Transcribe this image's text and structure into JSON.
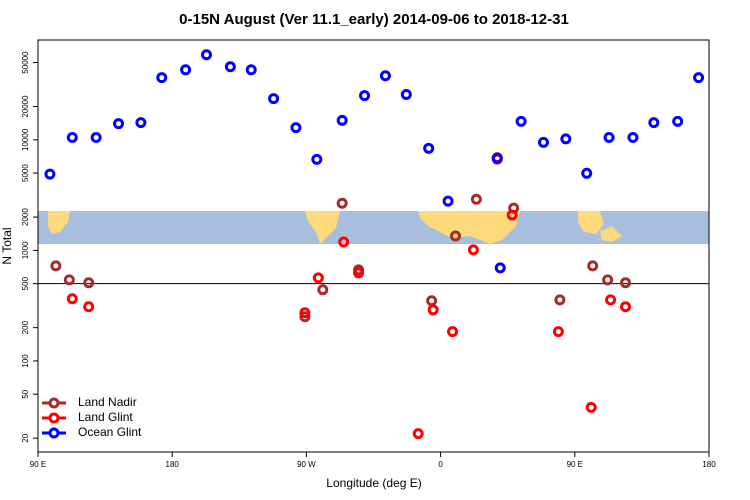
{
  "chart_data": {
    "type": "scatter",
    "title": "0-15N August (Ver 11.1_early)   2014-09-06 to 2018-12-31",
    "x_label": "Longitude (deg E)",
    "y_label": "N Total",
    "xlim": [
      90,
      540
    ],
    "xticks": [
      {
        "value": 90,
        "label": "90 E"
      },
      180,
      {
        "value": 270,
        "label": "90 W"
      },
      {
        "value": 360,
        "label": "0"
      },
      {
        "value": 450,
        "label": "90 E"
      },
      {
        "value": 540,
        "label": "180"
      }
    ],
    "ylim": [
      15,
      80000
    ],
    "ylog": true,
    "yticks": [
      20,
      50,
      100,
      200,
      500,
      1000,
      2000,
      5000,
      10000,
      20000,
      50000
    ],
    "hlines": [
      500
    ],
    "legend": "lower left",
    "series": [
      {
        "name": "Land Nadir",
        "color": "#a52a2a",
        "x": [
          102,
          111,
          124,
          269,
          281,
          294,
          305,
          354,
          370,
          384,
          398,
          409,
          440,
          462,
          472,
          484
        ],
        "values": [
          724,
          541,
          509,
          251,
          440,
          2670,
          666,
          350,
          1350,
          2900,
          6900,
          2410,
          357,
          724,
          541,
          509
        ]
      },
      {
        "name": "Land Glint",
        "color": "#ff0000",
        "x": [
          113,
          124,
          269,
          278,
          295,
          305,
          345,
          355,
          368,
          382,
          398,
          408,
          439,
          461,
          474,
          484
        ],
        "values": [
          365,
          309,
          273,
          564,
          1190,
          626,
          22,
          290,
          184,
          1010,
          6700,
          2090,
          184,
          38,
          357,
          309
        ]
      },
      {
        "name": "Ocean Glint",
        "color": "#0000ff",
        "x": [
          98,
          113,
          129,
          144,
          159,
          173,
          189,
          203,
          219,
          233,
          248,
          263,
          277,
          294,
          309,
          323,
          337,
          352,
          365,
          398,
          400,
          414,
          429,
          444,
          458,
          473,
          489,
          503,
          519,
          533
        ],
        "values": [
          4900,
          10500,
          10500,
          14000,
          14300,
          36500,
          43000,
          58800,
          45800,
          43000,
          23600,
          12900,
          6660,
          15000,
          25100,
          38000,
          25700,
          8380,
          2790,
          6800,
          695,
          14700,
          9480,
          10200,
          4980,
          10500,
          10500,
          14300,
          14700,
          36500
        ]
      }
    ]
  }
}
